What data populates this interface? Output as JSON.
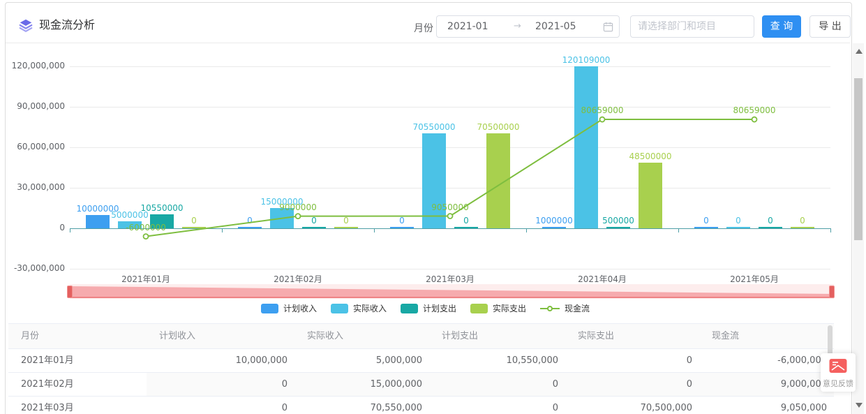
{
  "header": {
    "title": "现金流分析",
    "month_label": "月份",
    "date_start": "2021-01",
    "date_arrow": "→",
    "date_end": "2021-05",
    "dept_placeholder": "请选择部门和项目",
    "query_label": "查 询",
    "export_label": "导 出"
  },
  "icons": {
    "title": "layers-icon",
    "calendar": "calendar-icon",
    "feedback": "envelope-icon"
  },
  "chart_data": {
    "type": "bar+line",
    "categories": [
      "2021年01月",
      "2021年02月",
      "2021年03月",
      "2021年04月",
      "2021年05月"
    ],
    "series": [
      {
        "name": "计划收入",
        "type": "bar",
        "color": "#3D9FF0",
        "values": [
          10000000,
          0,
          0,
          1000000,
          0
        ]
      },
      {
        "name": "实际收入",
        "type": "bar",
        "color": "#4BC2E6",
        "values": [
          5000000,
          15000000,
          70550000,
          120109000,
          0
        ]
      },
      {
        "name": "计划支出",
        "type": "bar",
        "color": "#18A8A4",
        "values": [
          10550000,
          0,
          0,
          500000,
          0
        ]
      },
      {
        "name": "实际支出",
        "type": "bar",
        "color": "#A8D04E",
        "values": [
          0,
          0,
          70500000,
          48500000,
          0
        ]
      },
      {
        "name": "现金流",
        "type": "line",
        "color": "#7EBE3F",
        "values": [
          -6000000,
          9000000,
          9050000,
          80659000,
          80659000
        ]
      }
    ],
    "y_ticks": [
      "120,000,000",
      "90,000,000",
      "60,000,000",
      "30,000,000",
      "0",
      "-30,000,000"
    ],
    "ylim": [
      -30000000,
      130000000
    ],
    "legend_position": "bottom",
    "grid": true
  },
  "table": {
    "columns": [
      "月份",
      "计划收入",
      "实际收入",
      "计划支出",
      "实际支出",
      "现金流"
    ],
    "rows": [
      [
        "2021年01月",
        "10,000,000",
        "5,000,000",
        "10,550,000",
        "0",
        "-6,000,000"
      ],
      [
        "2021年02月",
        "0",
        "15,000,000",
        "0",
        "0",
        "9,000,000"
      ],
      [
        "2021年03月",
        "0",
        "70,550,000",
        "0",
        "70,500,000",
        "9,050,000"
      ]
    ]
  },
  "feedback": {
    "label": "意见反馈"
  }
}
